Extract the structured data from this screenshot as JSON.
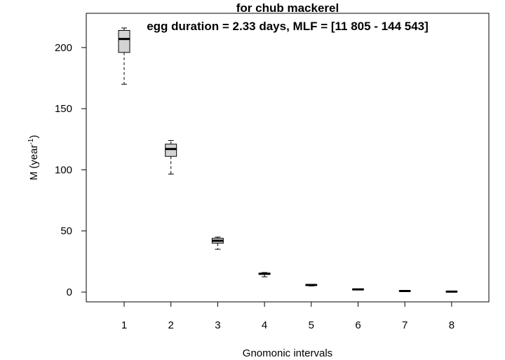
{
  "chart_data": {
    "type": "boxplot",
    "title": "for chub mackerel",
    "subtitle": "egg duration = 2.33 days, MLF = [11 805 - 144 543]",
    "xlabel": "Gnomonic intervals",
    "ylabel_main": "M (year",
    "ylabel_sup": "-1",
    "ylabel_close": ")",
    "categories": [
      "1",
      "2",
      "3",
      "4",
      "5",
      "6",
      "7",
      "8"
    ],
    "yticks": [
      0,
      50,
      100,
      150,
      200
    ],
    "ylim": [
      -8,
      228
    ],
    "boxes": [
      {
        "category": "1",
        "whisker_low": 170,
        "q1": 196,
        "median": 207,
        "q3": 214,
        "whisker_high": 216
      },
      {
        "category": "2",
        "whisker_low": 96.5,
        "q1": 111,
        "median": 117,
        "q3": 121,
        "whisker_high": 124
      },
      {
        "category": "3",
        "whisker_low": 35,
        "q1": 40,
        "median": 42,
        "q3": 44,
        "whisker_high": 45
      },
      {
        "category": "4",
        "whisker_low": 12.5,
        "q1": 14.5,
        "median": 15,
        "q3": 15.5,
        "whisker_high": 16
      },
      {
        "category": "5",
        "whisker_low": 5,
        "q1": 5.5,
        "median": 5.8,
        "q3": 6,
        "whisker_high": 6.2
      },
      {
        "category": "6",
        "whisker_low": 1.8,
        "q1": 2,
        "median": 2.2,
        "q3": 2.4,
        "whisker_high": 2.5
      },
      {
        "category": "7",
        "whisker_low": 0.6,
        "q1": 0.8,
        "median": 0.9,
        "q3": 1,
        "whisker_high": 1.1
      },
      {
        "category": "8",
        "whisker_low": 0.2,
        "q1": 0.3,
        "median": 0.4,
        "q3": 0.5,
        "whisker_high": 0.6
      }
    ],
    "box_fill": "#d3d3d3",
    "line_color": "#000000",
    "grid": false,
    "legend": "none"
  }
}
